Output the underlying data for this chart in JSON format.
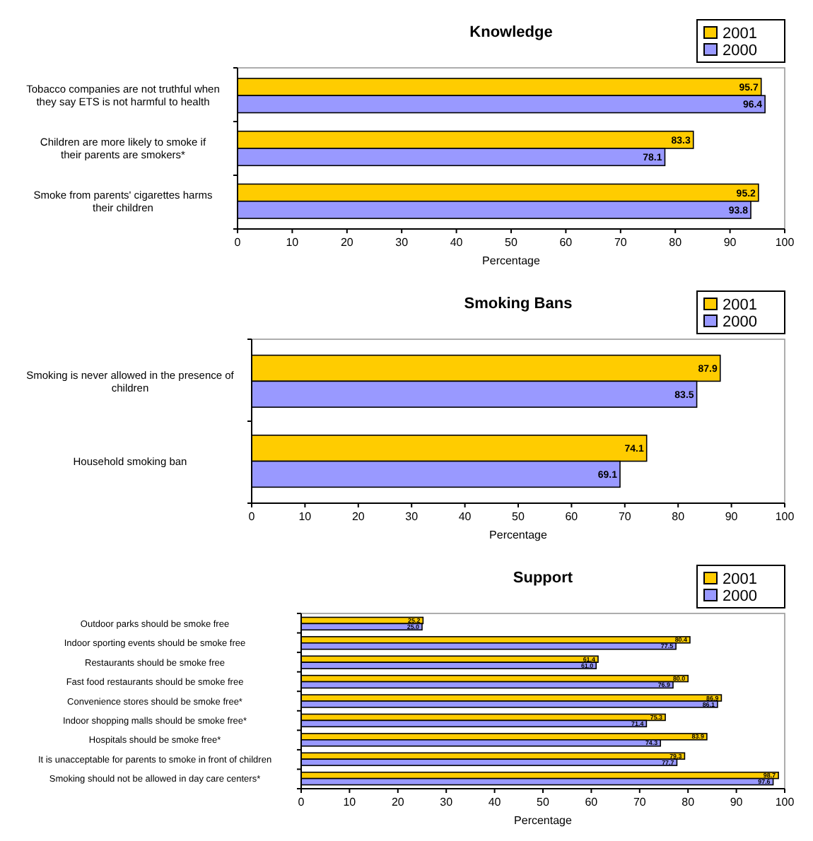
{
  "chart_data": [
    {
      "type": "bar",
      "orientation": "horizontal",
      "title": "Knowledge",
      "xlabel": "Percentage",
      "categories": [
        "Tobacco companies are not truthful when they say ETS is not harmful to health",
        "Children are more likely to smoke if their parents are smokers*",
        "Smoke from parents' cigarettes harms their children"
      ],
      "series": [
        {
          "name": "2001",
          "color": "#ffcc00",
          "values": [
            95.7,
            83.3,
            95.2
          ]
        },
        {
          "name": "2000",
          "color": "#9999ff",
          "values": [
            96.4,
            78.1,
            93.8
          ]
        }
      ],
      "xlim": [
        0,
        100
      ],
      "xticks": [
        0,
        10,
        20,
        30,
        40,
        50,
        60,
        70,
        80,
        90,
        100
      ],
      "data_labels": true,
      "legend": "top right"
    },
    {
      "type": "bar",
      "orientation": "horizontal",
      "title": "Smoking Bans",
      "xlabel": "Percentage",
      "categories": [
        "Smoking is never allowed in the presence of children",
        "Household smoking ban"
      ],
      "series": [
        {
          "name": "2001",
          "color": "#ffcc00",
          "values": [
            87.9,
            74.1
          ]
        },
        {
          "name": "2000",
          "color": "#9999ff",
          "values": [
            83.5,
            69.1
          ]
        }
      ],
      "xlim": [
        0,
        100
      ],
      "xticks": [
        0,
        10,
        20,
        30,
        40,
        50,
        60,
        70,
        80,
        90,
        100
      ],
      "data_labels": true,
      "legend": "top right"
    },
    {
      "type": "bar",
      "orientation": "horizontal",
      "title": "Support",
      "xlabel": "Percentage",
      "categories": [
        "Outdoor parks should be smoke free",
        "Indoor sporting events should be smoke free",
        "Restaurants should be smoke free",
        "Fast food restaurants should be smoke free",
        "Convenience stores should be smoke free*",
        "Indoor shopping malls should be smoke free*",
        "Hospitals should be smoke free*",
        "It is unacceptable for parents to smoke in front of children",
        "Smoking should not be allowed in day care centers*"
      ],
      "series": [
        {
          "name": "2001",
          "color": "#ffcc00",
          "values": [
            25.2,
            80.4,
            61.4,
            80.0,
            86.9,
            75.3,
            83.9,
            79.3,
            98.7
          ],
          "value_labels": [
            "25.2",
            "80.4",
            "61.4",
            "80.0",
            "86.9",
            "75.3",
            "83.9",
            "79.3",
            "98.7"
          ]
        },
        {
          "name": "2000",
          "color": "#9999ff",
          "values": [
            25.0,
            77.5,
            61.0,
            76.9,
            86.1,
            71.4,
            74.3,
            77.7,
            97.6
          ],
          "value_labels": [
            "25.0",
            "77.5",
            "61.0",
            "76.9",
            "86.1",
            "71.4",
            "74.3",
            "77.7",
            "97.6"
          ]
        }
      ],
      "xlim": [
        0,
        100
      ],
      "xticks": [
        0,
        10,
        20,
        30,
        40,
        50,
        60,
        70,
        80,
        90,
        100
      ],
      "legend": "top right"
    }
  ]
}
